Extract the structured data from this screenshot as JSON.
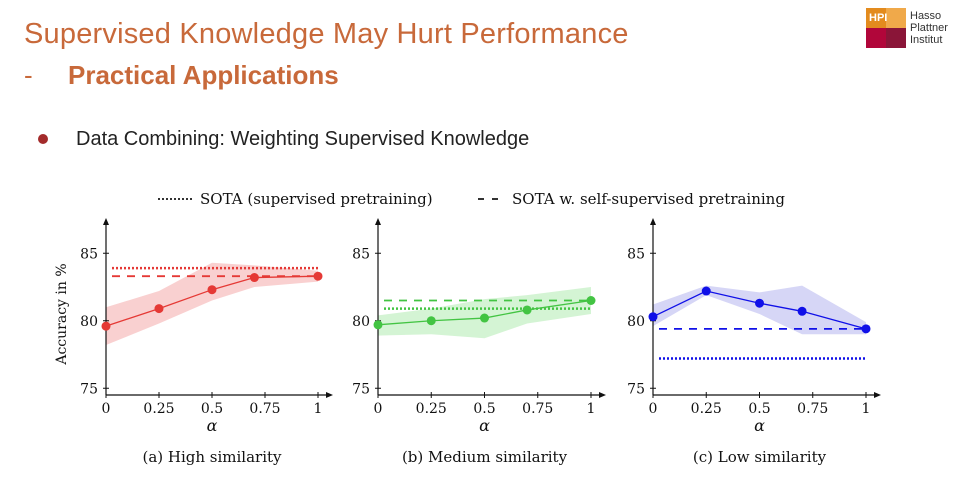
{
  "slide": {
    "title": "Supervised Knowledge May Hurt Performance",
    "subtitle_dash": "-",
    "subtitle": "Practical Applications",
    "bullet": "Data Combining: Weighting Supervised Knowledge"
  },
  "logo": {
    "badge": "HPI",
    "lines": [
      "Hasso",
      "Plattner",
      "Institut"
    ]
  },
  "legend": {
    "sota_label": "SOTA (supervised pretraining)",
    "sota_ssl_label": "SOTA w. self-supervised pretraining"
  },
  "chart_data": [
    {
      "type": "line",
      "caption": "(a) High similarity",
      "color": "#e53935",
      "band_color": "#f8c8c8",
      "x": [
        0,
        0.25,
        0.5,
        0.7,
        1
      ],
      "xticks": [
        "0",
        "0.25",
        "0.5",
        "0.75",
        "1"
      ],
      "xlabel": "α",
      "ylabel": "Accuracy in %",
      "ylim": [
        74.5,
        86.5
      ],
      "yticks": [
        "75",
        "80",
        "85"
      ],
      "series": [
        {
          "values": [
            79.6,
            80.9,
            82.3,
            83.2,
            83.3
          ]
        }
      ],
      "band_lower": [
        78.2,
        79.8,
        81.5,
        82.5,
        82.9
      ],
      "band_upper": [
        81.0,
        82.2,
        84.3,
        84.1,
        83.7
      ],
      "sota": 83.9,
      "sota_ssl": 83.3
    },
    {
      "type": "line",
      "caption": "(b) Medium similarity",
      "color": "#43c443",
      "band_color": "#ccf2cc",
      "x": [
        0,
        0.25,
        0.5,
        0.7,
        1
      ],
      "xticks": [
        "0",
        "0.25",
        "0.5",
        "0.75",
        "1"
      ],
      "xlabel": "α",
      "ylabel": "",
      "ylim": [
        74.5,
        86.5
      ],
      "yticks": [
        "75",
        "80",
        "85"
      ],
      "series": [
        {
          "values": [
            79.7,
            80.0,
            80.2,
            80.8,
            81.5
          ]
        }
      ],
      "band_lower": [
        78.9,
        79.0,
        78.7,
        79.8,
        80.5
      ],
      "band_upper": [
        80.4,
        80.9,
        81.6,
        81.9,
        82.5
      ],
      "sota": 80.9,
      "sota_ssl": 81.5
    },
    {
      "type": "line",
      "caption": "(c) Low similarity",
      "color": "#1010e8",
      "band_color": "#cfcff5",
      "x": [
        0,
        0.25,
        0.5,
        0.7,
        1
      ],
      "xticks": [
        "0",
        "0.25",
        "0.5",
        "0.75",
        "1"
      ],
      "xlabel": "α",
      "ylabel": "",
      "ylim": [
        74.5,
        86.5
      ],
      "yticks": [
        "75",
        "80",
        "85"
      ],
      "series": [
        {
          "values": [
            80.3,
            82.2,
            81.3,
            80.7,
            79.4
          ]
        }
      ],
      "band_lower": [
        79.6,
        81.9,
        80.5,
        79.0,
        79.0
      ],
      "band_upper": [
        81.2,
        82.6,
        82.1,
        82.6,
        79.9
      ],
      "sota": 77.2,
      "sota_ssl": 79.4
    }
  ]
}
